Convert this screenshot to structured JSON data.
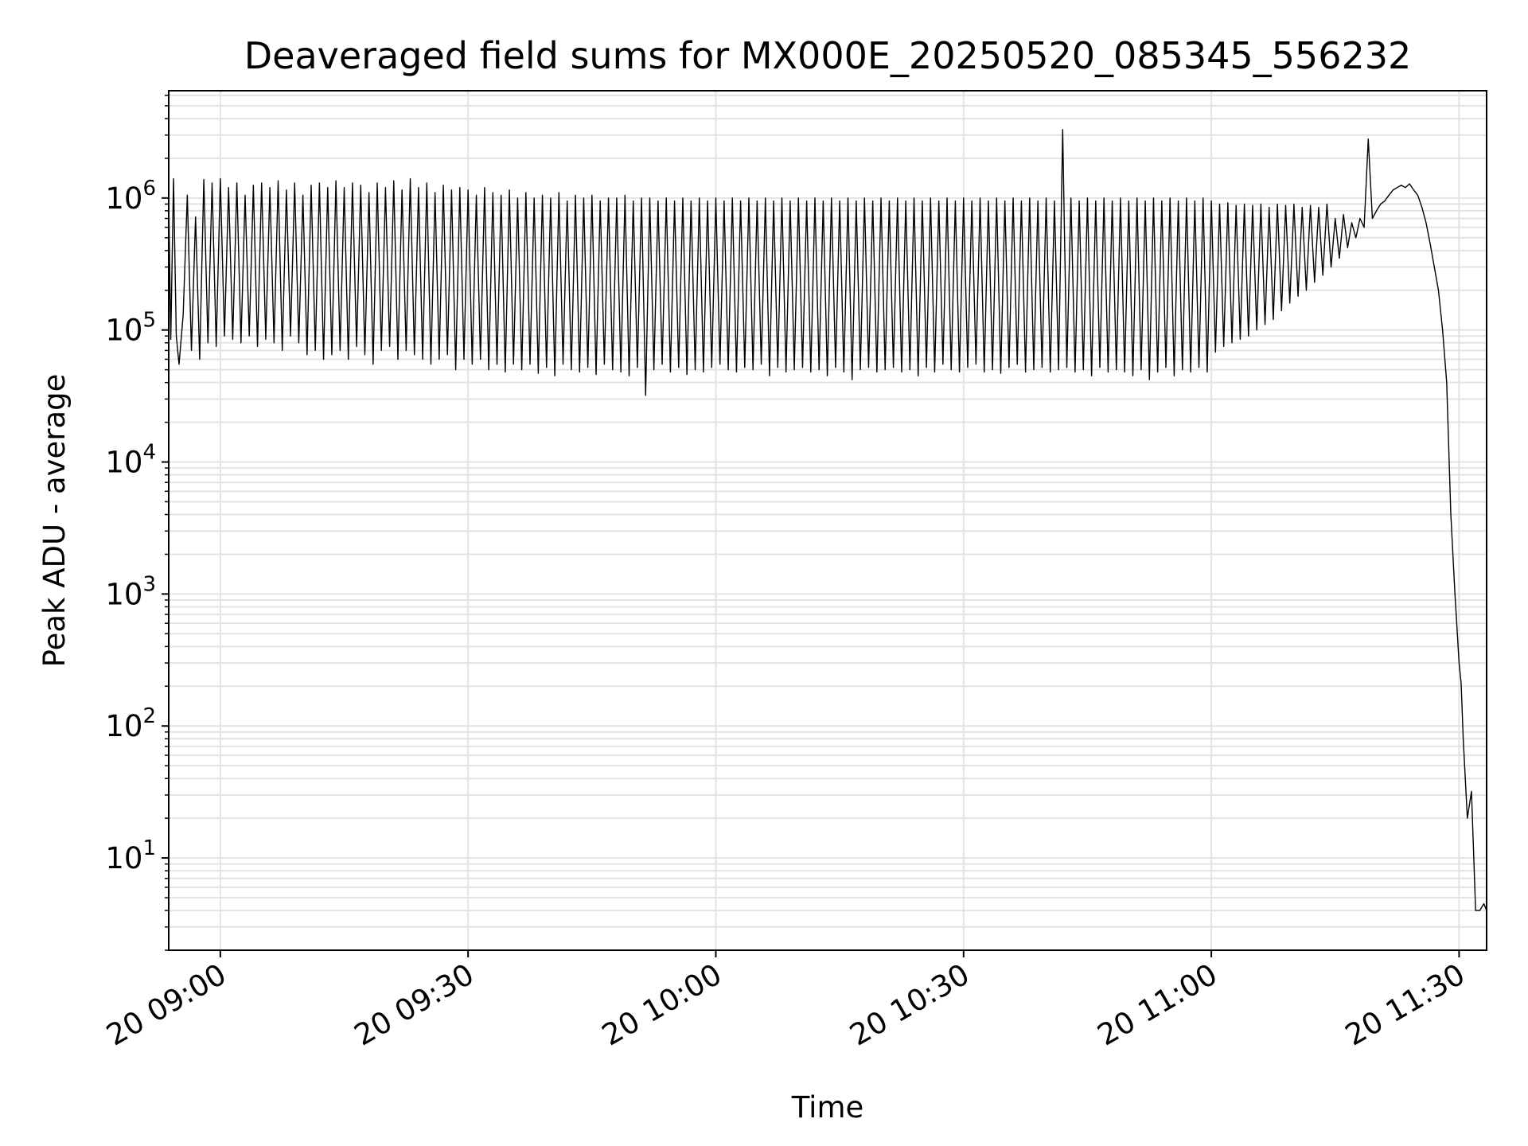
{
  "chart_data": {
    "type": "line",
    "title": "Deaveraged field sums for MX000E_20250520_085345_556232",
    "xlabel": "Time",
    "ylabel": "Peak ADU - average",
    "yscale": "log",
    "grid": "on (major and minor, both axes)",
    "legend": "none",
    "xlim": [
      "20 08:53:45",
      "20 11:33:20"
    ],
    "ylim": [
      2,
      6500000
    ],
    "x_ticks": [
      {
        "label": "20 09:00",
        "value": "20 09:00"
      },
      {
        "label": "20 09:30",
        "value": "20 09:30"
      },
      {
        "label": "20 10:00",
        "value": "20 10:00"
      },
      {
        "label": "20 10:30",
        "value": "20 10:30"
      },
      {
        "label": "20 11:00",
        "value": "20 11:00"
      },
      {
        "label": "20 11:30",
        "value": "20 11:30"
      }
    ],
    "y_ticks": [
      {
        "base": "10",
        "exp": "1",
        "value": 10
      },
      {
        "base": "10",
        "exp": "2",
        "value": 100
      },
      {
        "base": "10",
        "exp": "3",
        "value": 1000
      },
      {
        "base": "10",
        "exp": "4",
        "value": 10000
      },
      {
        "base": "10",
        "exp": "5",
        "value": 100000
      },
      {
        "base": "10",
        "exp": "6",
        "value": 1000000
      }
    ],
    "line_color": "#000000",
    "series": [
      {
        "x": [
          "20 08:53:45",
          "20 08:54:00",
          "20 08:54:20",
          "20 08:54:40",
          "20 08:55:00",
          "20 08:55:30",
          "20 08:56:00",
          "20 08:56:30",
          "20 08:57:00",
          "20 08:57:30",
          "20 08:58:00",
          "20 08:58:30",
          "20 08:59:00",
          "20 08:59:30",
          "20 09:00:00",
          "20 09:00:30",
          "20 09:01:00",
          "20 09:01:30",
          "20 09:02:00",
          "20 09:02:30",
          "20 09:03:00",
          "20 09:03:30",
          "20 09:04:00",
          "20 09:04:30",
          "20 09:05:00",
          "20 09:05:30",
          "20 09:06:00",
          "20 09:06:30",
          "20 09:07:00",
          "20 09:07:30",
          "20 09:08:00",
          "20 09:08:30",
          "20 09:09:00",
          "20 09:09:30",
          "20 09:10:00",
          "20 09:10:30",
          "20 09:11:00",
          "20 09:11:30",
          "20 09:12:00",
          "20 09:12:30",
          "20 09:13:00",
          "20 09:13:30",
          "20 09:14:00",
          "20 09:14:30",
          "20 09:15:00",
          "20 09:15:30",
          "20 09:16:00",
          "20 09:16:30",
          "20 09:17:00",
          "20 09:17:30",
          "20 09:18:00",
          "20 09:18:30",
          "20 09:19:00",
          "20 09:19:30",
          "20 09:20:00",
          "20 09:20:30",
          "20 09:21:00",
          "20 09:21:30",
          "20 09:22:00",
          "20 09:22:30",
          "20 09:23:00",
          "20 09:23:30",
          "20 09:24:00",
          "20 09:24:30",
          "20 09:25:00",
          "20 09:25:30",
          "20 09:26:00",
          "20 09:26:30",
          "20 09:27:00",
          "20 09:27:30",
          "20 09:28:00",
          "20 09:28:30",
          "20 09:29:00",
          "20 09:29:30",
          "20 09:30:00",
          "20 09:30:30",
          "20 09:31:00",
          "20 09:31:30",
          "20 09:32:00",
          "20 09:32:30",
          "20 09:33:00",
          "20 09:33:30",
          "20 09:34:00",
          "20 09:34:30",
          "20 09:35:00",
          "20 09:35:30",
          "20 09:36:00",
          "20 09:36:30",
          "20 09:37:00",
          "20 09:37:30",
          "20 09:38:00",
          "20 09:38:30",
          "20 09:39:00",
          "20 09:39:30",
          "20 09:40:00",
          "20 09:40:30",
          "20 09:41:00",
          "20 09:41:30",
          "20 09:42:00",
          "20 09:42:30",
          "20 09:43:00",
          "20 09:43:30",
          "20 09:44:00",
          "20 09:44:30",
          "20 09:45:00",
          "20 09:45:30",
          "20 09:46:00",
          "20 09:46:30",
          "20 09:47:00",
          "20 09:47:30",
          "20 09:48:00",
          "20 09:48:30",
          "20 09:49:00",
          "20 09:49:30",
          "20 09:50:00",
          "20 09:50:30",
          "20 09:51:00",
          "20 09:51:30",
          "20 09:52:00",
          "20 09:52:30",
          "20 09:53:00",
          "20 09:53:30",
          "20 09:54:00",
          "20 09:54:30",
          "20 09:55:00",
          "20 09:55:30",
          "20 09:56:00",
          "20 09:56:30",
          "20 09:57:00",
          "20 09:57:30",
          "20 09:58:00",
          "20 09:58:30",
          "20 09:59:00",
          "20 09:59:30",
          "20 10:00:00",
          "20 10:00:30",
          "20 10:01:00",
          "20 10:01:30",
          "20 10:02:00",
          "20 10:02:30",
          "20 10:03:00",
          "20 10:03:30",
          "20 10:04:00",
          "20 10:04:30",
          "20 10:05:00",
          "20 10:05:30",
          "20 10:06:00",
          "20 10:06:30",
          "20 10:07:00",
          "20 10:07:30",
          "20 10:08:00",
          "20 10:08:30",
          "20 10:09:00",
          "20 10:09:30",
          "20 10:10:00",
          "20 10:10:30",
          "20 10:11:00",
          "20 10:11:30",
          "20 10:12:00",
          "20 10:12:30",
          "20 10:13:00",
          "20 10:13:30",
          "20 10:14:00",
          "20 10:14:30",
          "20 10:15:00",
          "20 10:15:30",
          "20 10:16:00",
          "20 10:16:30",
          "20 10:17:00",
          "20 10:17:30",
          "20 10:18:00",
          "20 10:18:30",
          "20 10:19:00",
          "20 10:19:30",
          "20 10:20:00",
          "20 10:20:30",
          "20 10:21:00",
          "20 10:21:30",
          "20 10:22:00",
          "20 10:22:30",
          "20 10:23:00",
          "20 10:23:30",
          "20 10:24:00",
          "20 10:24:30",
          "20 10:25:00",
          "20 10:25:30",
          "20 10:26:00",
          "20 10:26:30",
          "20 10:27:00",
          "20 10:27:30",
          "20 10:28:00",
          "20 10:28:30",
          "20 10:29:00",
          "20 10:29:30",
          "20 10:30:00",
          "20 10:30:30",
          "20 10:31:00",
          "20 10:31:30",
          "20 10:32:00",
          "20 10:32:30",
          "20 10:33:00",
          "20 10:33:30",
          "20 10:34:00",
          "20 10:34:30",
          "20 10:35:00",
          "20 10:35:30",
          "20 10:36:00",
          "20 10:36:30",
          "20 10:37:00",
          "20 10:37:30",
          "20 10:38:00",
          "20 10:38:30",
          "20 10:39:00",
          "20 10:39:30",
          "20 10:40:00",
          "20 10:40:30",
          "20 10:41:00",
          "20 10:41:30",
          "20 10:42:00",
          "20 10:42:30",
          "20 10:43:00",
          "20 10:43:30",
          "20 10:44:00",
          "20 10:44:30",
          "20 10:45:00",
          "20 10:45:30",
          "20 10:46:00",
          "20 10:46:30",
          "20 10:47:00",
          "20 10:47:30",
          "20 10:48:00",
          "20 10:48:30",
          "20 10:49:00",
          "20 10:49:30",
          "20 10:50:00",
          "20 10:50:30",
          "20 10:51:00",
          "20 10:51:30",
          "20 10:52:00",
          "20 10:52:30",
          "20 10:53:00",
          "20 10:53:30",
          "20 10:54:00",
          "20 10:54:30",
          "20 10:55:00",
          "20 10:55:30",
          "20 10:56:00",
          "20 10:56:30",
          "20 10:57:00",
          "20 10:57:30",
          "20 10:58:00",
          "20 10:58:30",
          "20 10:59:00",
          "20 10:59:30",
          "20 11:00:00",
          "20 11:00:30",
          "20 11:01:00",
          "20 11:01:30",
          "20 11:02:00",
          "20 11:02:30",
          "20 11:03:00",
          "20 11:03:30",
          "20 11:04:00",
          "20 11:04:30",
          "20 11:05:00",
          "20 11:05:30",
          "20 11:06:00",
          "20 11:06:30",
          "20 11:07:00",
          "20 11:07:30",
          "20 11:08:00",
          "20 11:08:30",
          "20 11:09:00",
          "20 11:09:30",
          "20 11:10:00",
          "20 11:10:30",
          "20 11:11:00",
          "20 11:11:30",
          "20 11:12:00",
          "20 11:12:30",
          "20 11:13:00",
          "20 11:13:30",
          "20 11:14:00",
          "20 11:14:30",
          "20 11:15:00",
          "20 11:15:30",
          "20 11:16:00",
          "20 11:16:30",
          "20 11:17:00",
          "20 11:17:30",
          "20 11:18:00",
          "20 11:18:30",
          "20 11:19:00",
          "20 11:19:30",
          "20 11:20:00",
          "20 11:20:30",
          "20 11:21:00",
          "20 11:21:30",
          "20 11:22:00",
          "20 11:22:30",
          "20 11:23:00",
          "20 11:23:30",
          "20 11:24:00",
          "20 11:24:30",
          "20 11:25:00",
          "20 11:25:30",
          "20 11:26:00",
          "20 11:26:30",
          "20 11:27:00",
          "20 11:27:30",
          "20 11:28:00",
          "20 11:28:30",
          "20 11:29:00",
          "20 11:29:30",
          "20 11:30:00",
          "20 11:30:15",
          "20 11:30:30",
          "20 11:31:00",
          "20 11:31:30",
          "20 11:32:00",
          "20 11:32:30",
          "20 11:33:00",
          "20 11:33:20"
        ],
        "values": [
          1000000,
          85000,
          1400000,
          90000,
          55000,
          130000,
          1050000,
          70000,
          720000,
          60000,
          1380000,
          80000,
          1300000,
          75000,
          1400000,
          90000,
          1200000,
          85000,
          1300000,
          80000,
          1050000,
          90000,
          1250000,
          75000,
          1300000,
          85000,
          1200000,
          80000,
          1350000,
          70000,
          1150000,
          90000,
          1300000,
          80000,
          1050000,
          65000,
          1250000,
          70000,
          1300000,
          60000,
          1200000,
          65000,
          1350000,
          70000,
          1200000,
          60000,
          1300000,
          75000,
          1250000,
          65000,
          1100000,
          55000,
          1300000,
          70000,
          1200000,
          75000,
          1350000,
          60000,
          1150000,
          70000,
          1400000,
          65000,
          1200000,
          60000,
          1300000,
          55000,
          1100000,
          60000,
          1250000,
          65000,
          1150000,
          50000,
          1200000,
          60000,
          1150000,
          55000,
          1050000,
          60000,
          1200000,
          50000,
          1100000,
          55000,
          1050000,
          48000,
          1150000,
          55000,
          1000000,
          50000,
          1100000,
          55000,
          1000000,
          47000,
          1050000,
          52000,
          1000000,
          45000,
          1100000,
          55000,
          950000,
          50000,
          1050000,
          48000,
          1000000,
          52000,
          1050000,
          46000,
          950000,
          55000,
          1000000,
          50000,
          1000000,
          48000,
          1050000,
          45000,
          950000,
          52000,
          1000000,
          32000,
          1000000,
          50000,
          950000,
          55000,
          1000000,
          48000,
          950000,
          52000,
          1000000,
          46000,
          950000,
          50000,
          1000000,
          48000,
          950000,
          52000,
          1000000,
          55000,
          950000,
          50000,
          1000000,
          48000,
          950000,
          52000,
          1000000,
          50000,
          950000,
          55000,
          1000000,
          45000,
          950000,
          52000,
          1000000,
          48000,
          950000,
          50000,
          1000000,
          52000,
          950000,
          48000,
          1000000,
          50000,
          950000,
          45000,
          1000000,
          52000,
          950000,
          48000,
          1000000,
          42000,
          950000,
          50000,
          1000000,
          52000,
          950000,
          48000,
          1000000,
          50000,
          950000,
          52000,
          1000000,
          48000,
          950000,
          50000,
          1000000,
          45000,
          950000,
          52000,
          1000000,
          48000,
          950000,
          55000,
          1000000,
          50000,
          950000,
          48000,
          1000000,
          52000,
          950000,
          55000,
          1000000,
          48000,
          950000,
          50000,
          1000000,
          47000,
          950000,
          52000,
          1000000,
          55000,
          950000,
          48000,
          1000000,
          50000,
          950000,
          52000,
          1000000,
          48000,
          950000,
          50000,
          3300000,
          52000,
          1000000,
          48000,
          950000,
          50000,
          1000000,
          45000,
          950000,
          52000,
          1000000,
          48000,
          950000,
          50000,
          1000000,
          48000,
          950000,
          45000,
          1000000,
          50000,
          950000,
          42000,
          1000000,
          48000,
          950000,
          52000,
          1000000,
          45000,
          950000,
          50000,
          1000000,
          48000,
          950000,
          52000,
          1000000,
          48000,
          950000,
          68000,
          900000,
          75000,
          920000,
          80000,
          880000,
          85000,
          900000,
          90000,
          880000,
          100000,
          900000,
          110000,
          850000,
          120000,
          900000,
          140000,
          880000,
          160000,
          900000,
          180000,
          850000,
          200000,
          880000,
          230000,
          850000,
          260000,
          900000,
          300000,
          700000,
          350000,
          750000,
          420000,
          650000,
          500000,
          700000,
          600000,
          2800000,
          700000,
          800000,
          900000,
          950000,
          1050000,
          1150000,
          1200000,
          1250000,
          1200000,
          1280000,
          1150000,
          1050000,
          850000,
          650000,
          450000,
          300000,
          200000,
          100000,
          40000,
          4000,
          1000,
          300,
          210,
          80,
          20,
          32,
          4,
          4,
          4.5,
          4
        ]
      }
    ]
  }
}
